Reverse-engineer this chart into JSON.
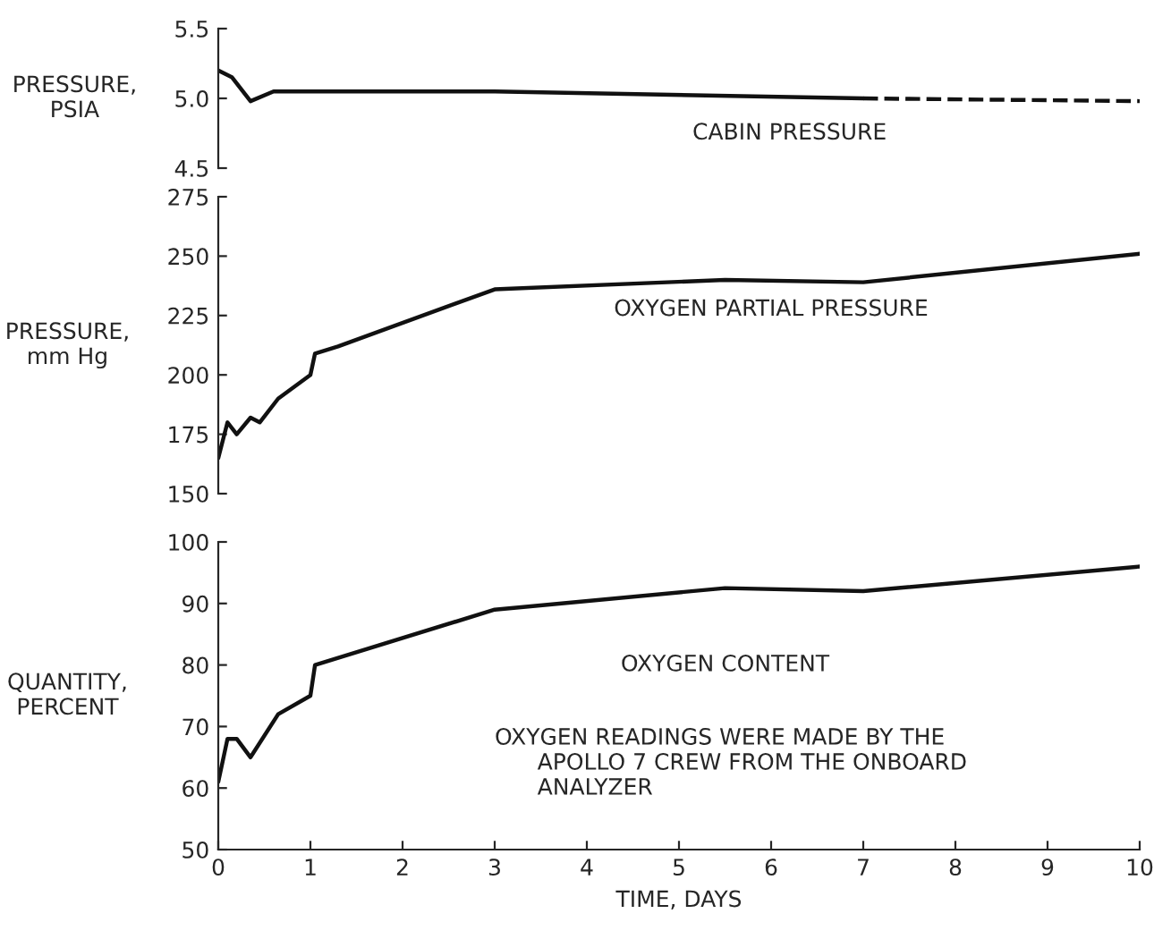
{
  "chart_data": [
    {
      "type": "line",
      "ylabel": "PRESSURE,\nPSIA",
      "xlim": [
        0,
        10
      ],
      "xticks": [
        0,
        1,
        2,
        3,
        4,
        5,
        6,
        7,
        8,
        9,
        10
      ],
      "ylim": [
        4.5,
        5.5
      ],
      "yticks": [
        4.5,
        {
          "value": 5,
          "label": "5.0"
        },
        5.5
      ],
      "tick_labels": "y",
      "grid": false,
      "legend": false,
      "series": [
        {
          "name": "CABIN PRESSURE",
          "color": "#111111",
          "line_style": "solid",
          "x": [
            0,
            0.15,
            0.35,
            0.6,
            3,
            7
          ],
          "values": [
            5.2,
            5.15,
            4.98,
            5.05,
            5.05,
            5.0
          ]
        },
        {
          "color": "#111111",
          "line_style": "dashed",
          "x": [
            7,
            10
          ],
          "values": [
            5.0,
            4.98
          ]
        }
      ]
    },
    {
      "type": "line",
      "ylabel": "PRESSURE,\nmm Hg",
      "xlim": [
        0,
        10
      ],
      "xticks": [
        0,
        1,
        2,
        3,
        4,
        5,
        6,
        7,
        8,
        9,
        10
      ],
      "ylim": [
        150,
        275
      ],
      "yticks": [
        150,
        175,
        200,
        225,
        250,
        275
      ],
      "tick_labels": "y",
      "grid": false,
      "legend": false,
      "series": [
        {
          "name": "OXYGEN PARTIAL PRESSURE",
          "color": "#111111",
          "line_style": "solid",
          "x": [
            0,
            0.1,
            0.2,
            0.35,
            0.45,
            0.65,
            1.0,
            1.05,
            1.3,
            3,
            5.5,
            7,
            10
          ],
          "values": [
            165,
            180,
            175,
            182,
            180,
            190,
            200,
            209,
            212,
            236,
            240,
            239,
            251
          ]
        }
      ]
    },
    {
      "type": "line",
      "ylabel": "QUANTITY,\nPERCENT",
      "xlabel": "TIME, DAYS",
      "xlim": [
        0,
        10
      ],
      "xticks": [
        0,
        1,
        2,
        3,
        4,
        5,
        6,
        7,
        8,
        9,
        10
      ],
      "ylim": [
        50,
        100
      ],
      "yticks": [
        50,
        60,
        70,
        80,
        90,
        100
      ],
      "grid": false,
      "legend": false,
      "annotations": [
        "OXYGEN READINGS WERE MADE BY THE\n      APOLLO 7 CREW FROM THE ONBOARD\n      ANALYZER"
      ],
      "series": [
        {
          "name": "OXYGEN CONTENT",
          "color": "#111111",
          "line_style": "solid",
          "x": [
            0,
            0.1,
            0.2,
            0.35,
            0.65,
            1.0,
            1.05,
            3,
            5.5,
            7,
            10
          ],
          "values": [
            61,
            68,
            68,
            65,
            72,
            75,
            80,
            89,
            92.5,
            92,
            96
          ]
        }
      ]
    }
  ]
}
